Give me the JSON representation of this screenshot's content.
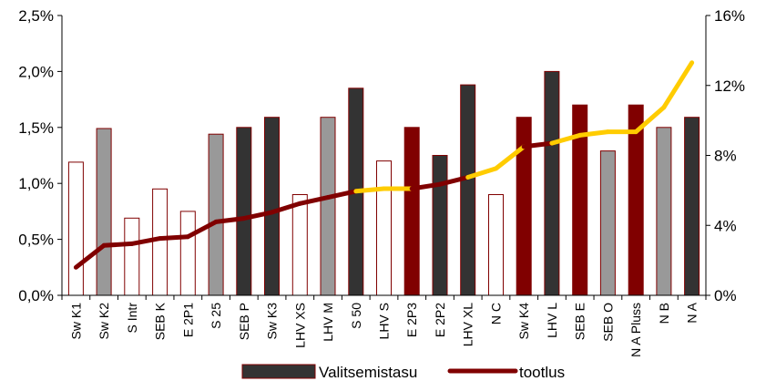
{
  "chart_data": {
    "type": "bar",
    "title": "",
    "xlabel": "",
    "ylabel": "",
    "categories": [
      "Sw K1",
      "Sw K2",
      "S Intr",
      "SEB K",
      "E 2P1",
      "S 25",
      "SEB P",
      "Sw K3",
      "LHV XS",
      "LHV M",
      "S 50",
      "LHV S",
      "E 2P3",
      "E 2P2",
      "LHV XL",
      "N C",
      "Sw K4",
      "LHV L",
      "SEB E",
      "SEB O",
      "N A Pluss",
      "N B",
      "N A"
    ],
    "bar_series": {
      "name": "Valitsemistasu",
      "axis": "left",
      "values": [
        1.19,
        1.49,
        0.69,
        0.95,
        0.75,
        1.44,
        1.5,
        1.59,
        0.9,
        1.59,
        1.85,
        1.2,
        1.5,
        1.25,
        1.88,
        0.9,
        1.59,
        2.0,
        1.7,
        1.29,
        1.7,
        1.5,
        1.59
      ],
      "fills": [
        "#ffffff",
        "#999999",
        "#ffffff",
        "#ffffff",
        "#ffffff",
        "#999999",
        "#333333",
        "#333333",
        "#ffffff",
        "#999999",
        "#333333",
        "#ffffff",
        "#800000",
        "#333333",
        "#333333",
        "#ffffff",
        "#800000",
        "#333333",
        "#800000",
        "#999999",
        "#800000",
        "#999999",
        "#333333"
      ]
    },
    "line_series": {
      "name": "tootlus",
      "axis": "right",
      "values": [
        1.6,
        2.85,
        2.95,
        3.25,
        3.35,
        4.2,
        4.4,
        4.75,
        5.25,
        5.6,
        5.95,
        6.1,
        6.1,
        6.35,
        6.75,
        7.25,
        8.5,
        8.7,
        9.15,
        9.35,
        9.35,
        10.75,
        13.3
      ],
      "colors": [
        "#800000",
        "#800000",
        "#800000",
        "#800000",
        "#800000",
        "#800000",
        "#800000",
        "#800000",
        "#800000",
        "#800000",
        "#800000",
        "#ffcc00",
        "#ffcc00",
        "#800000",
        "#800000",
        "#ffcc00",
        "#ffcc00",
        "#800000",
        "#ffcc00",
        "#ffcc00",
        "#ffcc00",
        "#ffcc00",
        "#ffcc00"
      ]
    },
    "ylim_left": [
      0,
      2.5
    ],
    "yticks_left": [
      "0,0%",
      "0,5%",
      "1,0%",
      "1,5%",
      "2,0%",
      "2,5%"
    ],
    "ylim_right": [
      0,
      16
    ],
    "yticks_right": [
      "0%",
      "4%",
      "8%",
      "12%",
      "16%"
    ],
    "grid": false,
    "legend_position": "bottom",
    "colors": {
      "bar_outline": "#800000",
      "line_primary": "#800000",
      "line_highlight": "#ffcc00",
      "legend_bar_fill": "#333333"
    }
  }
}
